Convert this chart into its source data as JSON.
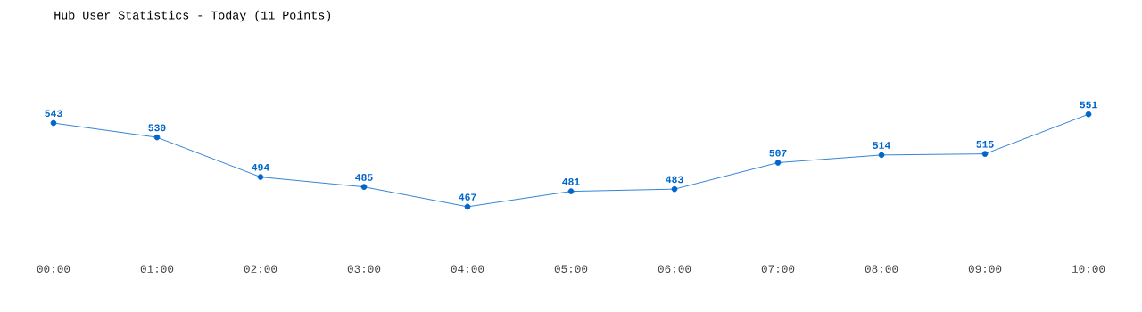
{
  "chart_data": {
    "type": "line",
    "title": "Hub User Statistics - Today (11 Points)",
    "categories": [
      "00:00",
      "01:00",
      "02:00",
      "03:00",
      "04:00",
      "05:00",
      "06:00",
      "07:00",
      "08:00",
      "09:00",
      "10:00"
    ],
    "values": [
      543,
      530,
      494,
      485,
      467,
      481,
      483,
      507,
      514,
      515,
      551
    ],
    "color": "#0066cc",
    "marker": "circle",
    "data_labels": true,
    "tick_labels": "x"
  }
}
